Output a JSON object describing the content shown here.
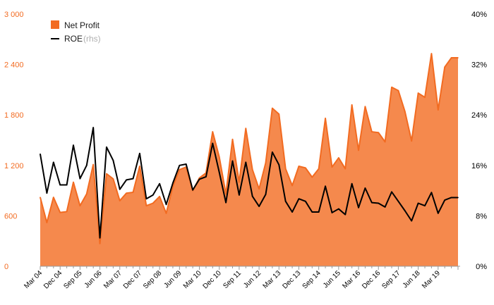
{
  "chart_data": {
    "type": "area",
    "colors": {
      "net_profit": "#f26b21",
      "roe": "#000000",
      "left_axis": "#f26b21",
      "right_axis": "#000000",
      "x_axis": "#999999"
    },
    "legend": {
      "placement": "top-left",
      "entries": [
        {
          "series": "net_profit",
          "label": "Net Profit",
          "sub": ""
        },
        {
          "series": "roe",
          "label": "ROE",
          "sub": "(rhs)"
        }
      ]
    },
    "x_tick_labels": [
      "Mar 04",
      "Dec 04",
      "Sep 05",
      "Jun 06",
      "Mar 07",
      "Dec 07",
      "Sep 08",
      "Jun 09",
      "Mar 10",
      "Dec 10",
      "Sep 11",
      "Jun 12",
      "Mar 13",
      "Dec 13",
      "Sep 14",
      "Jun 15",
      "Mar 16",
      "Dec 16",
      "Sep 17",
      "Jun 18",
      "Mar 19"
    ],
    "y_left": {
      "ticks": [
        0,
        600,
        1200,
        1800,
        2400,
        3000
      ],
      "tick_labels": [
        "0",
        "600",
        "1 200",
        "1 800",
        "2 400",
        "3 000"
      ],
      "ylim": [
        0,
        3000
      ]
    },
    "y_right": {
      "ticks": [
        0,
        8,
        16,
        24,
        32,
        40
      ],
      "tick_labels": [
        "0%",
        "8%",
        "16%",
        "24%",
        "32%",
        "40%"
      ],
      "ylim": [
        0,
        40
      ]
    },
    "x": [
      "Mar 04",
      "Jun 04",
      "Sep 04",
      "Dec 04",
      "Mar 05",
      "Jun 05",
      "Sep 05",
      "Dec 05",
      "Mar 06",
      "Jun 06",
      "Sep 06",
      "Dec 06",
      "Mar 07",
      "Jun 07",
      "Sep 07",
      "Dec 07",
      "Mar 08",
      "Jun 08",
      "Sep 08",
      "Dec 08",
      "Mar 09",
      "Jun 09",
      "Sep 09",
      "Dec 09",
      "Mar 10",
      "Jun 10",
      "Sep 10",
      "Dec 10",
      "Mar 11",
      "Jun 11",
      "Sep 11",
      "Dec 11",
      "Mar 12",
      "Jun 12",
      "Sep 12",
      "Dec 12",
      "Mar 13",
      "Jun 13",
      "Sep 13",
      "Dec 13",
      "Mar 14",
      "Jun 14",
      "Sep 14",
      "Dec 14",
      "Mar 15",
      "Jun 15",
      "Sep 15",
      "Dec 15",
      "Mar 16",
      "Jun 16",
      "Sep 16",
      "Dec 16",
      "Mar 17",
      "Jun 17",
      "Sep 17",
      "Dec 17",
      "Mar 18",
      "Jun 18",
      "Sep 18",
      "Dec 18",
      "Mar 19",
      "Jun 19",
      "Sep 19",
      "Dec 19"
    ],
    "series": [
      {
        "name": "Net Profit",
        "key": "net_profit",
        "axis": "left",
        "values": [
          820,
          520,
          820,
          640,
          650,
          1000,
          720,
          860,
          1210,
          270,
          1100,
          1040,
          780,
          870,
          880,
          1190,
          720,
          750,
          830,
          630,
          950,
          1150,
          1180,
          900,
          1050,
          1110,
          1600,
          1300,
          860,
          1510,
          1000,
          1640,
          1150,
          920,
          1230,
          1880,
          1810,
          1160,
          960,
          1190,
          1170,
          1060,
          1160,
          1760,
          1180,
          1290,
          1160,
          1920,
          1380,
          1900,
          1600,
          1590,
          1480,
          2130,
          2090,
          1840,
          1490,
          2060,
          2010,
          2530,
          1860,
          2370,
          2480,
          2480
        ],
        "fill_opacity": 0.8
      },
      {
        "name": "ROE",
        "key": "roe",
        "axis": "right",
        "values": [
          17.8,
          11.6,
          16.5,
          12.9,
          12.9,
          19.2,
          13.9,
          16.0,
          22.0,
          4.5,
          18.9,
          16.8,
          12.2,
          13.7,
          13.9,
          17.9,
          10.7,
          11.3,
          13.1,
          9.8,
          13.2,
          16.0,
          16.2,
          12.1,
          13.8,
          14.2,
          19.5,
          14.9,
          10.1,
          16.7,
          11.3,
          16.5,
          11.1,
          9.5,
          11.4,
          18.1,
          16.1,
          10.3,
          8.6,
          10.7,
          10.3,
          8.6,
          8.6,
          12.7,
          8.5,
          9.1,
          8.2,
          13.1,
          9.3,
          12.4,
          10.1,
          10.0,
          9.4,
          11.8,
          10.3,
          8.8,
          7.2,
          10.0,
          9.6,
          11.7,
          8.4,
          10.5,
          10.9,
          10.9
        ]
      }
    ]
  }
}
